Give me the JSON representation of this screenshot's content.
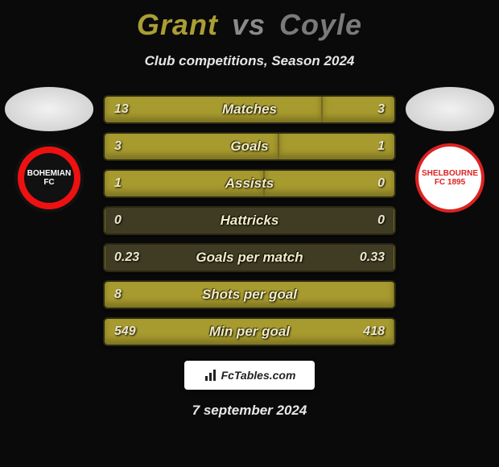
{
  "title": {
    "player1": "Grant",
    "vs": "vs",
    "player2": "Coyle"
  },
  "subtitle": "Club competitions, Season 2024",
  "colors": {
    "bar_track": "#3f3c23",
    "bar_fill": "#a79a2e",
    "title_p1": "#aa9e34",
    "title_p2": "#7a7a7a",
    "background": "#0a0a0a"
  },
  "stats": [
    {
      "label": "Matches",
      "left_val": "13",
      "right_val": "3",
      "left_pct": 75,
      "right_pct": 25
    },
    {
      "label": "Goals",
      "left_val": "3",
      "right_val": "1",
      "left_pct": 60,
      "right_pct": 40
    },
    {
      "label": "Assists",
      "left_val": "1",
      "right_val": "0",
      "left_pct": 55,
      "right_pct": 45
    },
    {
      "label": "Hattricks",
      "left_val": "0",
      "right_val": "0",
      "left_pct": 0,
      "right_pct": 0
    },
    {
      "label": "Goals per match",
      "left_val": "0.23",
      "right_val": "0.33",
      "left_pct": 0,
      "right_pct": 0
    },
    {
      "label": "Shots per goal",
      "left_val": "8",
      "right_val": "",
      "left_pct": 100,
      "right_pct": 0
    },
    {
      "label": "Min per goal",
      "left_val": "549",
      "right_val": "418",
      "left_pct": 100,
      "right_pct": 0
    }
  ],
  "crests": {
    "left": {
      "label": "BOHEMIAN FC"
    },
    "right": {
      "label": "SHELBOURNE FC 1895"
    }
  },
  "footer": {
    "brand": "FcTables.com"
  },
  "date": "7 september 2024"
}
